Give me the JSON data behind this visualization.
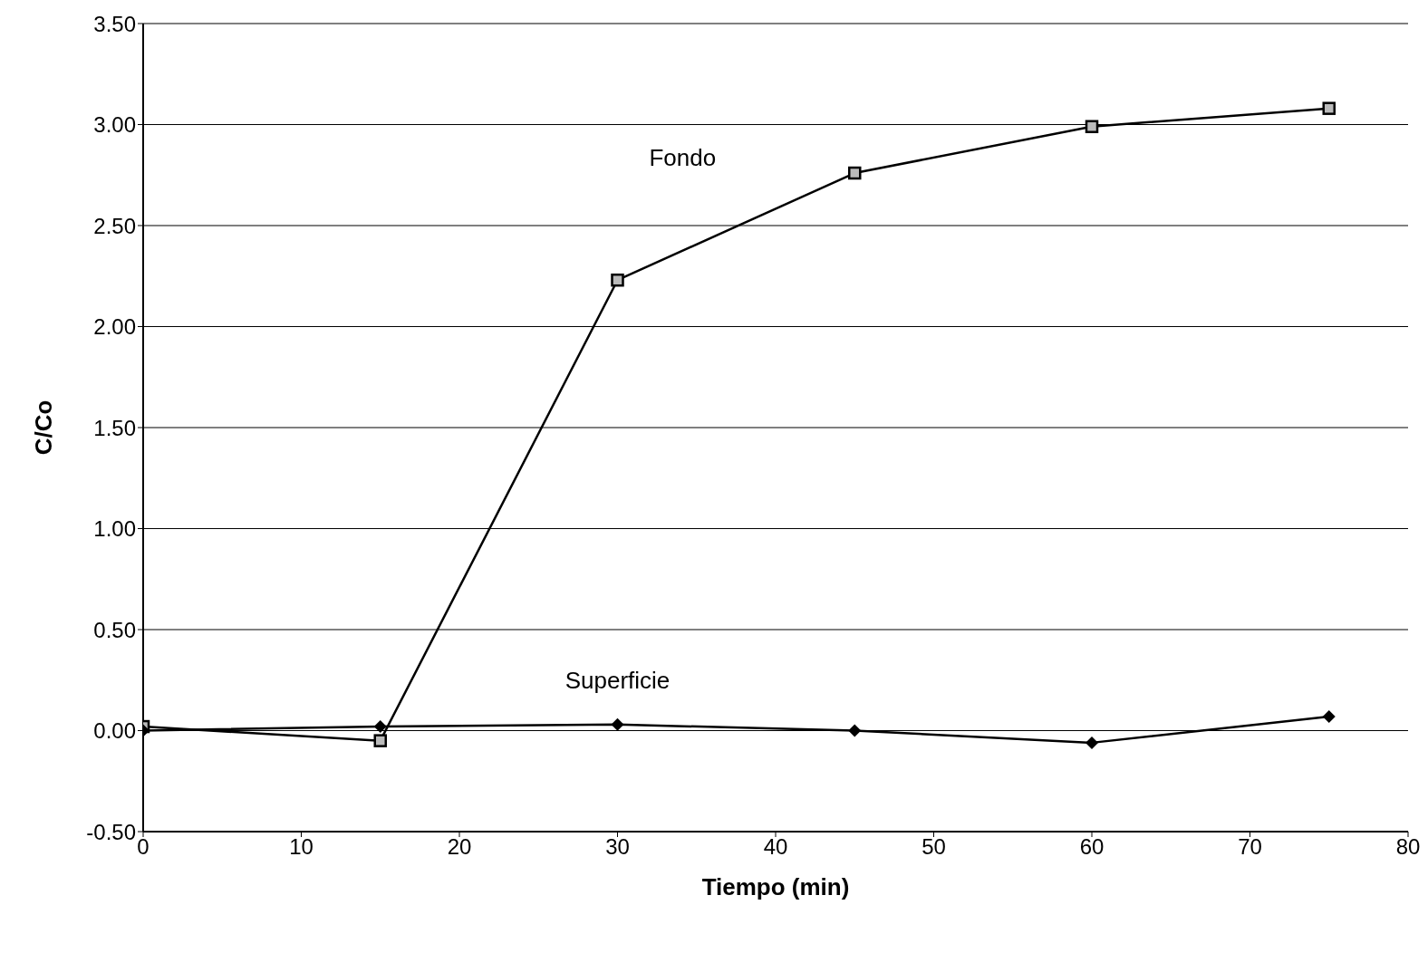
{
  "chart_data": {
    "type": "line",
    "xlabel": "Tiempo (min)",
    "ylabel": "C/Co",
    "x": [
      0,
      15,
      30,
      45,
      60,
      75
    ],
    "series": [
      {
        "name": "Fondo",
        "color": "#000000",
        "marker": "square",
        "values": [
          0.02,
          -0.05,
          2.23,
          2.76,
          2.99,
          3.08
        ]
      },
      {
        "name": "Superficie",
        "color": "#000000",
        "marker": "diamond",
        "values": [
          0.0,
          0.02,
          0.03,
          0.0,
          -0.06,
          0.07
        ]
      }
    ],
    "xlim": [
      0,
      80
    ],
    "xticks": [
      0,
      10,
      20,
      30,
      40,
      50,
      60,
      70,
      80
    ],
    "ylim": [
      -0.5,
      3.5
    ],
    "yticks": [
      {
        "value": -0.5,
        "label": "-0.50"
      },
      {
        "value": 0,
        "label": "0.00"
      },
      {
        "value": 0.5,
        "label": "0.50"
      },
      {
        "value": 1,
        "label": "1.00"
      },
      {
        "value": 1.5,
        "label": "1.50"
      },
      {
        "value": 2,
        "label": "2.00"
      },
      {
        "value": 2.5,
        "label": "2.50"
      },
      {
        "value": 3,
        "label": "3.00"
      },
      {
        "value": 3.5,
        "label": "3.50"
      }
    ],
    "grid": "y",
    "legend": false,
    "line_style": "solid"
  }
}
